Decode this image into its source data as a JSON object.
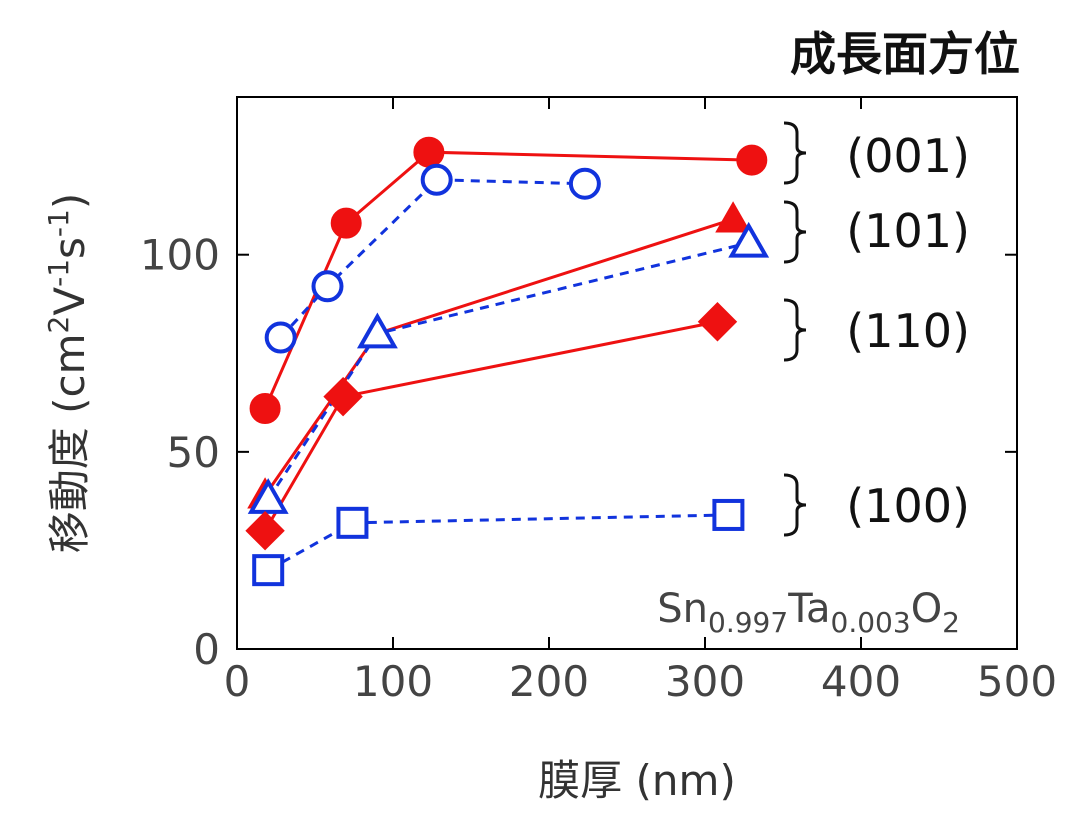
{
  "chart_data": {
    "type": "line",
    "title": "",
    "xlabel": "膜厚 (nm)",
    "ylabel": "移動度 (cm²V⁻¹s⁻¹)",
    "ylabel_parts": {
      "main": "移動度 (cm",
      "sup1": "2",
      "mid": "V",
      "sup2": "-1",
      "mid2": "s",
      "sup3": "-1",
      "end": ")"
    },
    "xlim": [
      0,
      500
    ],
    "ylim": [
      0,
      140
    ],
    "xticks": [
      0,
      100,
      200,
      300,
      400,
      500
    ],
    "yticks": [
      0,
      50,
      100
    ],
    "legend_title": "成長面方位",
    "group_labels": [
      "(001)",
      "(101)",
      "(110)",
      "(100)"
    ],
    "annotation": {
      "base1": "Sn",
      "sub1": "0.997",
      "base2": "Ta",
      "sub2": "0.003",
      "base3": "O",
      "sub3": "2"
    },
    "colors": {
      "red": "#ee1111",
      "blue": "#1133dd"
    },
    "series": [
      {
        "group": "(001)",
        "marker": "circle",
        "filled": true,
        "color": "red",
        "dash": false,
        "points": [
          [
            18,
            61
          ],
          [
            70,
            108
          ],
          [
            123,
            126
          ],
          [
            330,
            124
          ]
        ]
      },
      {
        "group": "(001)",
        "marker": "circle",
        "filled": false,
        "color": "blue",
        "dash": true,
        "points": [
          [
            28,
            79
          ],
          [
            58,
            92
          ],
          [
            128,
            119
          ],
          [
            223,
            118
          ]
        ]
      },
      {
        "group": "(101)",
        "marker": "triangle",
        "filled": true,
        "color": "red",
        "dash": false,
        "points": [
          [
            18,
            39
          ],
          [
            90,
            80
          ],
          [
            318,
            109
          ]
        ]
      },
      {
        "group": "(101)",
        "marker": "triangle",
        "filled": false,
        "color": "blue",
        "dash": true,
        "points": [
          [
            20,
            38
          ],
          [
            90,
            80
          ],
          [
            328,
            103
          ]
        ]
      },
      {
        "group": "(110)",
        "marker": "diamond",
        "filled": true,
        "color": "red",
        "dash": false,
        "points": [
          [
            18,
            30
          ],
          [
            68,
            64
          ],
          [
            308,
            83
          ]
        ]
      },
      {
        "group": "(100)",
        "marker": "square",
        "filled": false,
        "color": "blue",
        "dash": true,
        "points": [
          [
            20,
            20
          ],
          [
            74,
            32
          ],
          [
            315,
            34
          ]
        ]
      }
    ]
  }
}
